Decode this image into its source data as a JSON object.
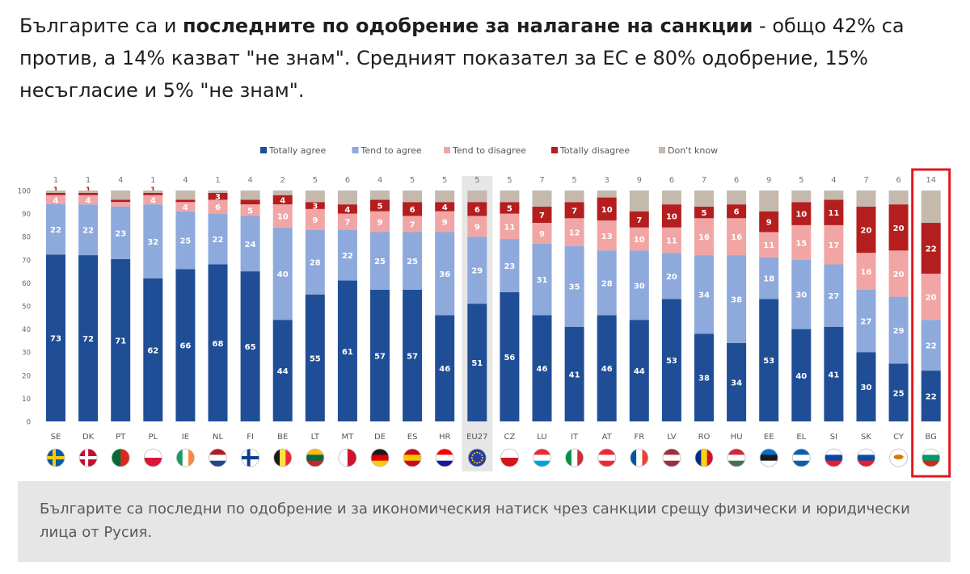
{
  "article": {
    "intro_prefix": "Българите са и ",
    "intro_bold": "последните по одобрение за налагане на санкции",
    "intro_suffix": " - общо 42% са против, а 14% казват \"не знам\". Средният показател за ЕС е 80% одобрение, 15% несъгласие и 5% \"не знам\".",
    "caption": "Българите са последни по одобрение и за икономическия натиск чрез санкции срещу физически и юридически лица от Русия."
  },
  "chart_data": {
    "type": "bar",
    "stacked": true,
    "orientation": "vertical",
    "categories": [
      "SE",
      "DK",
      "PT",
      "PL",
      "IE",
      "NL",
      "FI",
      "BE",
      "LT",
      "MT",
      "DE",
      "ES",
      "HR",
      "EU27",
      "CZ",
      "LU",
      "IT",
      "AT",
      "FR",
      "LV",
      "RO",
      "HU",
      "EE",
      "EL",
      "SI",
      "SK",
      "CY",
      "BG"
    ],
    "series": [
      {
        "name": "Totally agree",
        "color": "#1f4e96",
        "values": [
          73,
          72,
          71,
          62,
          66,
          68,
          65,
          44,
          55,
          61,
          57,
          57,
          46,
          51,
          56,
          46,
          41,
          46,
          44,
          53,
          38,
          34,
          53,
          40,
          41,
          30,
          25,
          22
        ]
      },
      {
        "name": "Tend to agree",
        "color": "#8ea9dc",
        "values": [
          22,
          22,
          23,
          32,
          25,
          22,
          24,
          40,
          28,
          22,
          25,
          25,
          36,
          29,
          23,
          31,
          35,
          28,
          30,
          20,
          34,
          38,
          18,
          30,
          27,
          27,
          29,
          22
        ]
      },
      {
        "name": "Tend to disagree",
        "color": "#f2a5a5",
        "values": [
          4,
          4,
          2,
          4,
          4,
          6,
          5,
          10,
          9,
          7,
          9,
          7,
          9,
          9,
          11,
          9,
          12,
          13,
          10,
          11,
          16,
          16,
          11,
          15,
          17,
          16,
          20,
          20
        ]
      },
      {
        "name": "Totally disagree",
        "color": "#b41e1e",
        "values": [
          1,
          1,
          1,
          1,
          1,
          3,
          2,
          4,
          3,
          4,
          5,
          6,
          4,
          6,
          5,
          7,
          7,
          10,
          7,
          10,
          5,
          6,
          9,
          10,
          11,
          20,
          20,
          22
        ]
      },
      {
        "name": "Don't know",
        "color": "#c5b8ad",
        "values": [
          1,
          1,
          4,
          1,
          4,
          1,
          4,
          2,
          5,
          6,
          4,
          5,
          5,
          5,
          5,
          7,
          5,
          3,
          9,
          6,
          7,
          6,
          9,
          5,
          4,
          7,
          6,
          14
        ]
      }
    ],
    "ylim": [
      0,
      100
    ],
    "yticks": [
      "0",
      "10",
      "20",
      "30",
      "40",
      "50",
      "60",
      "70",
      "80",
      "90",
      "100"
    ],
    "highlight": {
      "EU27": "shaded",
      "BG": "red-box"
    },
    "legend_position": "top",
    "flag_icons": [
      "sweden-flag-icon",
      "denmark-flag-icon",
      "portugal-flag-icon",
      "poland-flag-icon",
      "ireland-flag-icon",
      "netherlands-flag-icon",
      "finland-flag-icon",
      "belgium-flag-icon",
      "lithuania-flag-icon",
      "malta-flag-icon",
      "germany-flag-icon",
      "spain-flag-icon",
      "croatia-flag-icon",
      "eu-flag-icon",
      "czechia-flag-icon",
      "luxembourg-flag-icon",
      "italy-flag-icon",
      "austria-flag-icon",
      "france-flag-icon",
      "latvia-flag-icon",
      "romania-flag-icon",
      "hungary-flag-icon",
      "estonia-flag-icon",
      "greece-flag-icon",
      "slovenia-flag-icon",
      "slovakia-flag-icon",
      "cyprus-flag-icon",
      "bulgaria-flag-icon"
    ]
  }
}
